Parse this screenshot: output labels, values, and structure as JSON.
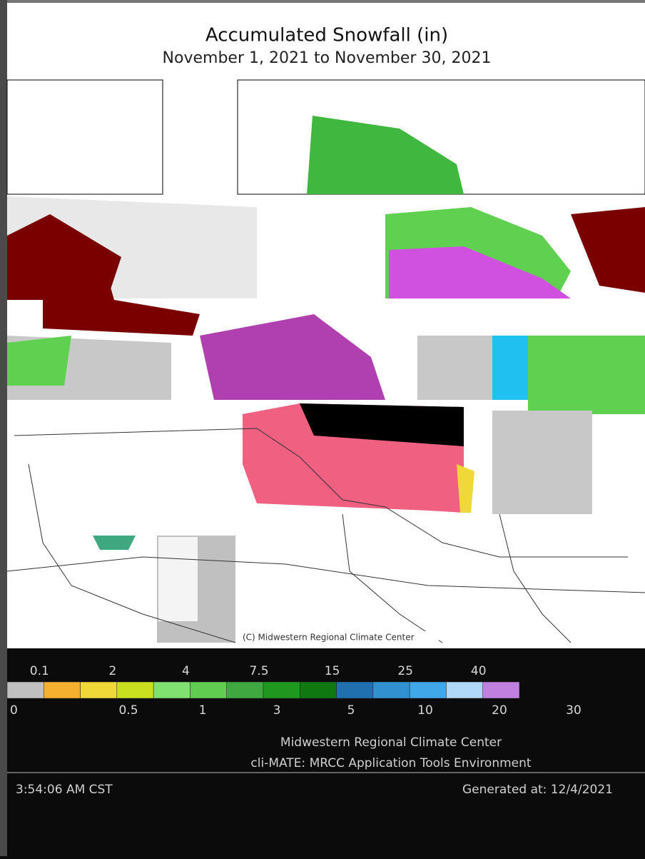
{
  "header": {
    "title": "Accumulated Snowfall (in)",
    "subtitle": "November 1, 2021 to November 30, 2021"
  },
  "map": {
    "credit": "(C) Midwestern Regional Climate Center"
  },
  "legend": {
    "colors": [
      "#c0c0c0",
      "#f5b030",
      "#f0d838",
      "#c8e020",
      "#80e070",
      "#60cc50",
      "#40a840",
      "#209820",
      "#107810",
      "#2070b0",
      "#3090d0",
      "#40a8e8",
      "#b0d8f8",
      "#c080e0"
    ],
    "upper_labels": [
      "0.1",
      "2",
      "4",
      "7.5",
      "15",
      "25",
      "40"
    ],
    "lower_labels": [
      "0",
      "0.5",
      "1",
      "3",
      "5",
      "10",
      "20",
      "30"
    ]
  },
  "footer": {
    "organization": "Midwestern Regional Climate Center",
    "application": "cli-MATE: MRCC Application Tools Environment",
    "time": "3:54:06 AM CST",
    "generated": "Generated at: 12/4/2021"
  }
}
